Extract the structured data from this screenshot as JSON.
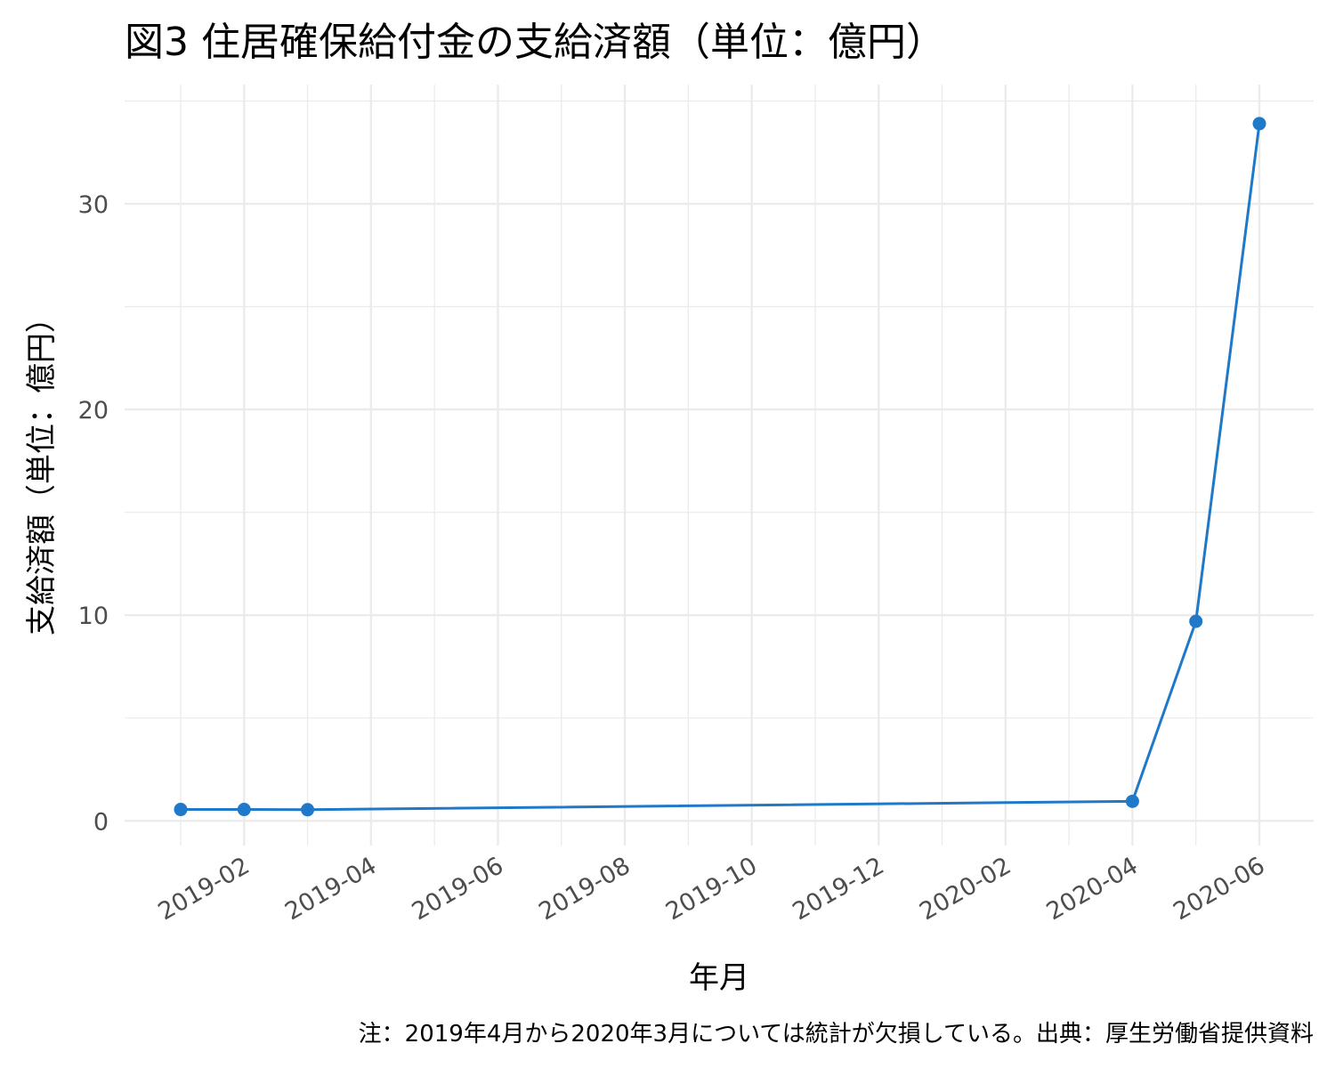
{
  "chart_data": {
    "type": "line",
    "title": "図3 住居確保給付金の支給済額（単位：億円）",
    "xlabel": "年月",
    "ylabel": "支給済額（単位：億円）",
    "note": "注：2019年4月から2020年3月については統計が欠損している。出典：厚生労働省提供資料",
    "x_tick_labels": [
      "2019-02",
      "2019-04",
      "2019-06",
      "2019-08",
      "2019-10",
      "2019-12",
      "2020-02",
      "2020-04",
      "2020-06"
    ],
    "y_ticks": [
      0,
      10,
      20,
      30
    ],
    "ylim": [
      -1.2,
      35.8
    ],
    "grid": true,
    "line_color": "#1f78c8",
    "series": [
      {
        "x": [
          "2019-01",
          "2019-02",
          "2019-03",
          "2020-04",
          "2020-05",
          "2020-06"
        ],
        "values": [
          0.55,
          0.55,
          0.54,
          0.95,
          9.7,
          33.9
        ]
      }
    ]
  }
}
